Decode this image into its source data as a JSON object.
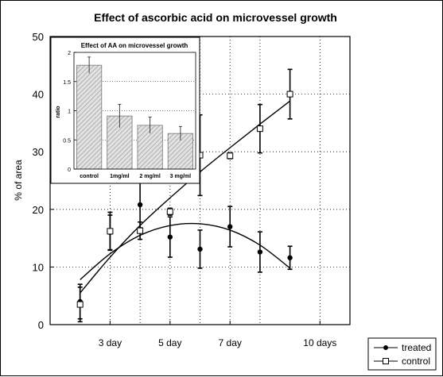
{
  "chart_data": [
    {
      "type": "scatter",
      "title": "Effect of ascorbic acid on microvessel growth",
      "xlabel": "",
      "ylabel": "% of area",
      "xlim": [
        1,
        11
      ],
      "ylim": [
        0,
        50
      ],
      "xticks": [
        {
          "x": 3,
          "label": "3 day"
        },
        {
          "x": 5,
          "label": "5 day"
        },
        {
          "x": 7,
          "label": "7 day"
        },
        {
          "x": 10,
          "label": "10 days"
        }
      ],
      "x_gridlines": [
        3,
        4,
        5,
        6,
        7,
        8,
        10
      ],
      "yticks": [
        0,
        10,
        20,
        30,
        40,
        50
      ],
      "grid": true,
      "legend": "bottom-right",
      "series": [
        {
          "name": "treated",
          "marker": "filled-circle",
          "color": "#000000",
          "points": [
            {
              "x": 2,
              "y": 4,
              "err": 3
            },
            {
              "x": 3,
              "y": 16,
              "err": 3
            },
            {
              "x": 4,
              "y": 20.8,
              "err": 4
            },
            {
              "x": 5,
              "y": 15.2,
              "err": 3.5
            },
            {
              "x": 6,
              "y": 13.1,
              "err": 3.3
            },
            {
              "x": 7,
              "y": 17,
              "err": 3.5
            },
            {
              "x": 8,
              "y": 12.6,
              "err": 3.5
            },
            {
              "x": 9,
              "y": 11.6,
              "err": 2
            }
          ],
          "trend": [
            {
              "x": 2,
              "y": 7.8
            },
            {
              "x": 3,
              "y": 12.3
            },
            {
              "x": 4,
              "y": 15.5
            },
            {
              "x": 5,
              "y": 17.2
            },
            {
              "x": 6,
              "y": 17.5
            },
            {
              "x": 7,
              "y": 16.4
            },
            {
              "x": 8,
              "y": 13.8
            },
            {
              "x": 9,
              "y": 9.8
            }
          ]
        },
        {
          "name": "control",
          "marker": "open-square",
          "color": "#000000",
          "points": [
            {
              "x": 2,
              "y": 3.5,
              "err": 3
            },
            {
              "x": 3,
              "y": 16.2,
              "err": 3.3
            },
            {
              "x": 4,
              "y": 16.3,
              "err": 1.5
            },
            {
              "x": 5,
              "y": 19.6,
              "err": 0.6
            },
            {
              "x": 6,
              "y": 29.4,
              "err": 7
            },
            {
              "x": 7,
              "y": 29.3,
              "err": 0.5
            },
            {
              "x": 8,
              "y": 34,
              "err": 4.2
            },
            {
              "x": 9,
              "y": 40,
              "err": 4.3
            }
          ],
          "trend": [
            {
              "x": 2,
              "y": 5.5
            },
            {
              "x": 3,
              "y": 11.7
            },
            {
              "x": 4,
              "y": 17.2
            },
            {
              "x": 5,
              "y": 22.0
            },
            {
              "x": 6,
              "y": 26.5
            },
            {
              "x": 7,
              "y": 30.7
            },
            {
              "x": 8,
              "y": 34.8
            },
            {
              "x": 9,
              "y": 38.8
            }
          ]
        }
      ]
    },
    {
      "type": "bar",
      "title": "Effect of AA on microvessel growth",
      "xlabel": "",
      "ylabel": "ratio",
      "ylim": [
        0,
        2
      ],
      "yticks": [
        0,
        0.5,
        1,
        1.5,
        2
      ],
      "ytick_labels": [
        "0",
        "0.5",
        "1",
        "1.5",
        "2"
      ],
      "categories": [
        "control",
        "1mg/ml",
        "2 mg/ml",
        "3 mg/ml"
      ],
      "values": [
        1.78,
        0.91,
        0.75,
        0.61
      ],
      "errors": [
        0.14,
        0.2,
        0.14,
        0.12
      ],
      "bar_fill": "hatched-gray"
    }
  ]
}
